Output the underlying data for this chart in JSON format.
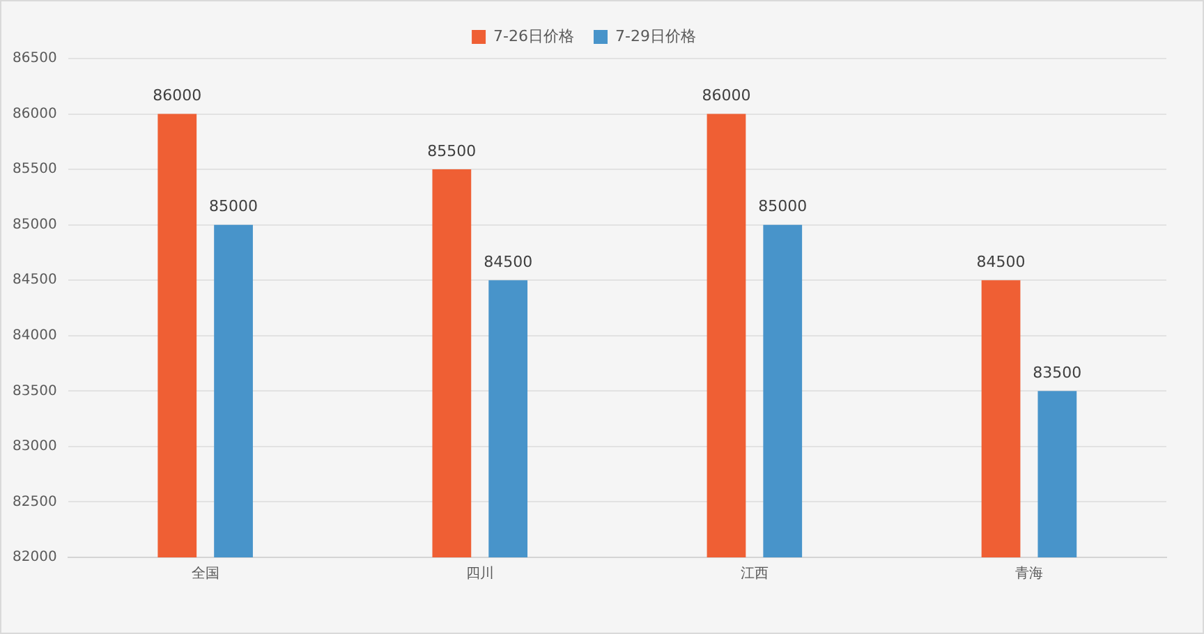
{
  "chart_data": {
    "type": "bar",
    "categories": [
      "全国",
      "四川",
      "江西",
      "青海"
    ],
    "series": [
      {
        "name": "7-26日价格",
        "color": "#ef5f34",
        "values": [
          86000,
          85500,
          86000,
          84500
        ]
      },
      {
        "name": "7-29日价格",
        "color": "#4894ca",
        "values": [
          85000,
          84500,
          85000,
          83500
        ]
      }
    ],
    "ylim": [
      82000,
      86500
    ],
    "yticks": [
      82000,
      82500,
      83000,
      83500,
      84000,
      84500,
      85000,
      85500,
      86000,
      86500
    ],
    "grid": "y",
    "legend": "top",
    "data_labels": true
  }
}
